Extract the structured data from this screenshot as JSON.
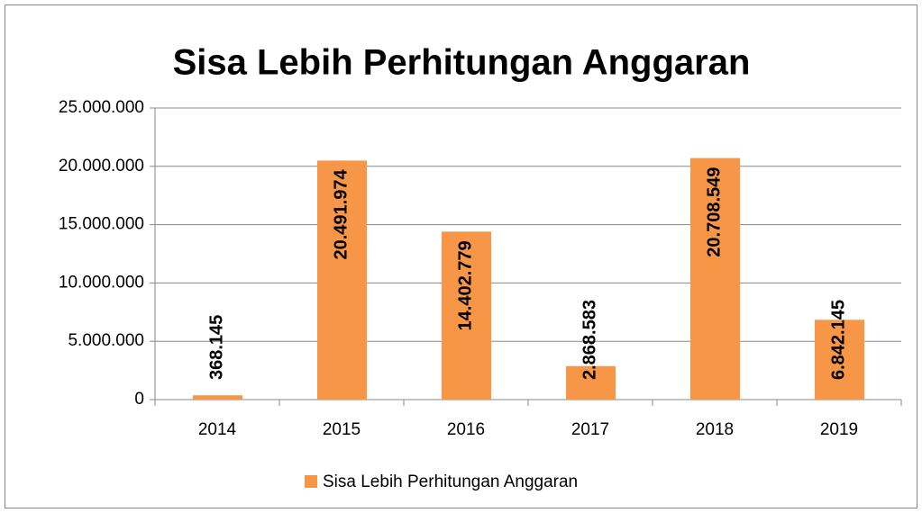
{
  "chart_data": {
    "type": "bar",
    "title": "Sisa Lebih Perhitungan Anggaran",
    "categories": [
      "2014",
      "2015",
      "2016",
      "2017",
      "2018",
      "2019"
    ],
    "series": [
      {
        "name": "Sisa Lebih Perhitungan Anggaran",
        "color": "#f79646",
        "values": [
          368145,
          20491974,
          14402779,
          2868583,
          20708549,
          6842145
        ],
        "value_labels": [
          "368.145",
          "20.491.974",
          "14.402.779",
          "2.868.583",
          "20.708.549",
          "6.842.145"
        ]
      }
    ],
    "ylim": [
      0,
      25000000
    ],
    "yticks": [
      0,
      {
        "value": 5000000,
        "label": "5.000.000"
      },
      {
        "value": 10000000,
        "label": "10.000.000"
      },
      {
        "value": 15000000,
        "label": "15.000.000"
      },
      {
        "value": 20000000,
        "label": "20.000.000"
      },
      {
        "value": 25000000,
        "label": "25.000.000"
      }
    ],
    "grid": true,
    "legend": "bottom"
  }
}
